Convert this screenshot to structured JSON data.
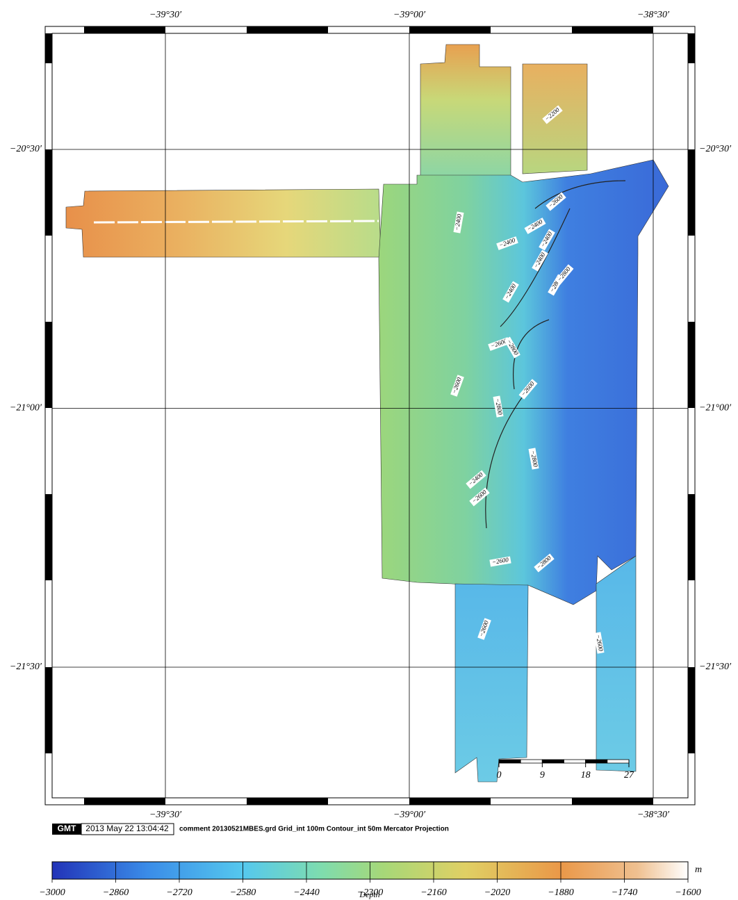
{
  "map": {
    "lon_ticks": [
      {
        "value": -39.5,
        "label": "−39°30′"
      },
      {
        "value": -39.0,
        "label": "−39°00′"
      },
      {
        "value": -38.5,
        "label": "−38°30′"
      }
    ],
    "lat_ticks": [
      {
        "value": -20.5,
        "label": "−20°30′"
      },
      {
        "value": -21.0,
        "label": "−21°00′"
      },
      {
        "value": -21.5,
        "label": "−21°30′"
      }
    ],
    "contour_labels": [
      "−2200",
      "−2400",
      "−2400",
      "−2400",
      "−2400",
      "−2400",
      "−2400",
      "−2600",
      "−2800",
      "−2800",
      "−2600",
      "−2800",
      "−2600",
      "−2600",
      "−2800",
      "−2800",
      "−2400",
      "−2600",
      "−2600",
      "−2800",
      "−2600",
      "−2600"
    ],
    "scale_bar": {
      "range": [
        0,
        27
      ],
      "ticks": [
        0,
        9,
        18,
        27
      ]
    }
  },
  "stamp": {
    "logo": "GMT",
    "time": "2013 May 22 13:04:42",
    "comment": "comment 20130521MBES.grd Grid_int 100m Contour_int 50m  Mercator Projection"
  },
  "colorbar": {
    "title": "Depth",
    "unit": "m",
    "range": [
      -3000,
      -1600
    ],
    "ticks": [
      {
        "value": -3000,
        "label": "−3000"
      },
      {
        "value": -2860,
        "label": "−2860"
      },
      {
        "value": -2720,
        "label": "−2720"
      },
      {
        "value": -2580,
        "label": "−2580"
      },
      {
        "value": -2440,
        "label": "−2440"
      },
      {
        "value": -2300,
        "label": "−2300"
      },
      {
        "value": -2160,
        "label": "−2160"
      },
      {
        "value": -2020,
        "label": "−2020"
      },
      {
        "value": -1880,
        "label": "−1880"
      },
      {
        "value": -1740,
        "label": "−1740"
      },
      {
        "value": -1600,
        "label": "−1600"
      }
    ]
  }
}
